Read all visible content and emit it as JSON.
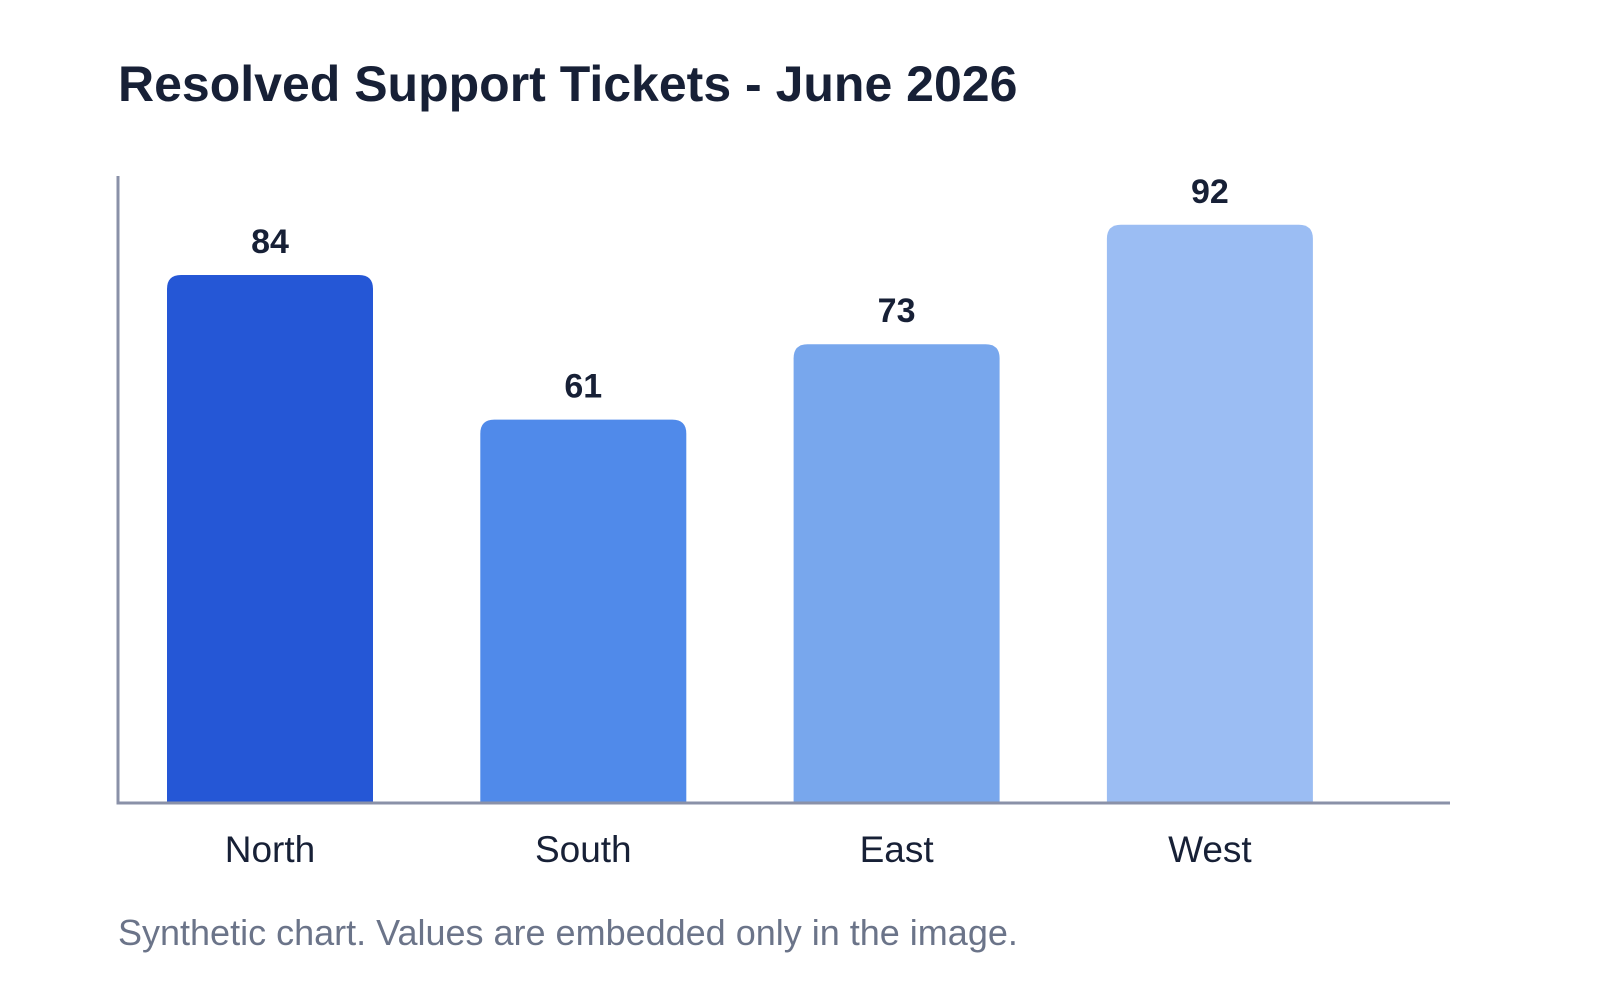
{
  "chart_data": {
    "type": "bar",
    "title": "Resolved Support Tickets - June 2026",
    "xlabel": "",
    "ylabel": "",
    "categories": [
      "North",
      "South",
      "East",
      "West"
    ],
    "values": [
      84,
      61,
      73,
      92
    ],
    "data_labels": [
      "84",
      "61",
      "73",
      "92"
    ],
    "ylim": [
      0,
      100
    ],
    "grid": false,
    "legend": "none",
    "colors": [
      "#2557d6",
      "#508aea",
      "#78a7ed",
      "#9bbdf3"
    ],
    "axis_color": "#8a91a8",
    "label_color": "#172036"
  },
  "footnote": "Synthetic chart. Values are embedded only in the image."
}
